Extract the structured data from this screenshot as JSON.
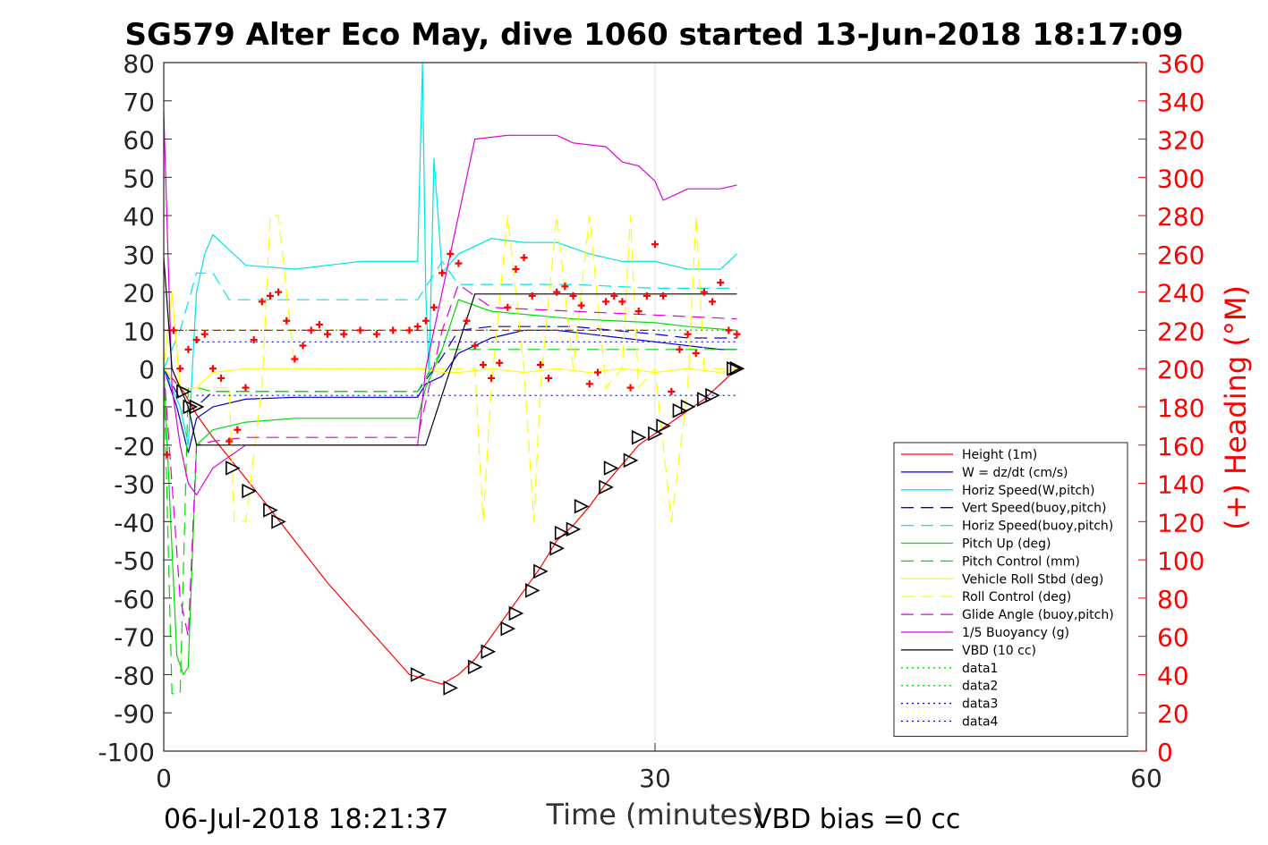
{
  "chart_data": {
    "type": "line",
    "title": "SG579 Alter Eco May, dive 1060 started 13-Jun-2018 18:17:09",
    "xlabel": "Time (minutes)",
    "ylabel_right": "(+) Heading (°M)",
    "xlim": [
      0,
      60
    ],
    "ylim_left": [
      -100,
      80
    ],
    "ylim_right": [
      0,
      360
    ],
    "xticks": [
      "0",
      "30",
      "60"
    ],
    "yticks_left": [
      "80",
      "70",
      "60",
      "50",
      "40",
      "30",
      "20",
      "10",
      "0",
      "-10",
      "-20",
      "-30",
      "-40",
      "-50",
      "-60",
      "-70",
      "-80",
      "-90",
      "-100"
    ],
    "yticks_right": [
      "360",
      "340",
      "320",
      "300",
      "280",
      "260",
      "240",
      "220",
      "200",
      "180",
      "160",
      "140",
      "120",
      "100",
      "80",
      "60",
      "40",
      "20",
      "0"
    ],
    "grid_x": [
      30
    ],
    "legend_position": "lower-right",
    "legend": [
      {
        "label": "Height (1m)",
        "color": "#ff0000",
        "dash": "solid"
      },
      {
        "label": "W = dz/dt (cm/s)",
        "color": "#0000cc",
        "dash": "solid"
      },
      {
        "label": "Horiz Speed(W,pitch)",
        "color": "#00e5e5",
        "dash": "solid"
      },
      {
        "label": "Vert Speed(buoy,pitch)",
        "color": "#0000cc",
        "dash": "long"
      },
      {
        "label": "Horiz Speed(buoy,pitch)",
        "color": "#00e5e5",
        "dash": "long"
      },
      {
        "label": "Pitch Up (deg)",
        "color": "#00dd00",
        "dash": "solid"
      },
      {
        "label": "Pitch Control (mm)",
        "color": "#00dd00",
        "dash": "long"
      },
      {
        "label": "Vehicle Roll Stbd (deg)",
        "color": "#ffff00",
        "dash": "solid"
      },
      {
        "label": "Roll Control (deg)",
        "color": "#ffff00",
        "dash": "long"
      },
      {
        "label": "Glide Angle (buoy,pitch)",
        "color": "#dd00dd",
        "dash": "long"
      },
      {
        "label": "1/5 Buoyancy (g)",
        "color": "#dd00dd",
        "dash": "solid"
      },
      {
        "label": "VBD (10 cc)",
        "color": "#000000",
        "dash": "solid"
      },
      {
        "label": "data1",
        "color": "#00dd00",
        "dash": "dot"
      },
      {
        "label": "data2",
        "color": "#00dd00",
        "dash": "dot"
      },
      {
        "label": "data3",
        "color": "#0000cc",
        "dash": "dot"
      },
      {
        "label": "data4",
        "color": "#0000cc",
        "dash": "dot"
      }
    ],
    "series": [
      {
        "name": "Height (1m)",
        "color": "#ff0000",
        "dash": "solid",
        "x": [
          0,
          1.2,
          2,
          3,
          4.5,
          6,
          10,
          15,
          17,
          18,
          19,
          20,
          21,
          22,
          23,
          24,
          25,
          26,
          27,
          28,
          29,
          30,
          31,
          32,
          33,
          34,
          35
        ],
        "y": [
          0,
          -6,
          -12,
          -18,
          -26,
          -34,
          -56,
          -80,
          -82.5,
          -80,
          -76,
          -70,
          -64,
          -58,
          -52,
          -45,
          -41,
          -36,
          -30,
          -25,
          -20,
          -17,
          -14,
          -11,
          -8,
          -4,
          0
        ]
      },
      {
        "name": "W = dz/dt (cm/s)",
        "color": "#0000cc",
        "dash": "solid",
        "x": [
          0,
          0.8,
          1.5,
          2,
          3,
          5,
          8,
          12,
          15.5,
          16,
          17,
          18,
          20,
          22,
          24,
          26,
          28,
          30,
          32,
          34,
          35
        ],
        "y": [
          0,
          -10,
          -22,
          -13,
          -10,
          -8,
          -7.5,
          -7.5,
          -7.5,
          -4,
          -2,
          4,
          8,
          10,
          10,
          9,
          8,
          7,
          6,
          5,
          5
        ]
      },
      {
        "name": "Horiz Speed(W,pitch)",
        "color": "#00e5e5",
        "dash": "solid",
        "x": [
          0,
          1,
          1.5,
          2,
          2.5,
          3,
          5,
          8,
          12,
          15.5,
          15.8,
          16,
          16.2,
          16.5,
          17,
          18,
          20,
          22,
          24,
          26,
          28,
          30,
          32,
          34,
          35
        ],
        "y": [
          0,
          -10,
          -20,
          20,
          30,
          35,
          27,
          26,
          28,
          28,
          80,
          20,
          -2,
          55,
          25,
          30,
          34,
          33,
          33,
          30,
          28,
          28,
          26,
          26,
          30
        ]
      },
      {
        "name": "Vert Speed(buoy,pitch)",
        "color": "#0000cc",
        "dash": "long",
        "x": [
          0,
          1,
          2,
          3,
          15.5,
          17,
          18,
          20,
          25,
          30,
          32,
          35
        ],
        "y": [
          0,
          -8,
          -10,
          -6,
          -6,
          3,
          10,
          11,
          11,
          9,
          8,
          8
        ]
      },
      {
        "name": "Horiz Speed(buoy,pitch)",
        "color": "#00e5e5",
        "dash": "long",
        "x": [
          0,
          1,
          2,
          3,
          4,
          15.5,
          17,
          18,
          20,
          25,
          30,
          32,
          35
        ],
        "y": [
          0,
          10,
          25,
          25,
          18,
          18,
          28,
          22,
          22,
          22,
          21,
          21,
          21
        ]
      },
      {
        "name": "Pitch Up (deg)",
        "color": "#00dd00",
        "dash": "solid",
        "x": [
          0,
          0.8,
          1.2,
          1.5,
          2,
          3,
          5,
          8,
          12,
          15.5,
          16,
          17,
          18,
          20,
          25,
          30,
          32,
          35
        ],
        "y": [
          0,
          -75,
          -80,
          -78,
          -20,
          -16,
          -14,
          -13,
          -13,
          -13,
          -5,
          5,
          18,
          15,
          13,
          12,
          11,
          10
        ]
      },
      {
        "name": "Pitch Control (mm)",
        "color": "#00dd00",
        "dash": "long",
        "x": [
          0,
          0.5,
          1,
          1.5,
          2,
          3,
          15.5,
          17,
          18,
          35
        ],
        "y": [
          0,
          -85,
          -85,
          -5,
          -5,
          -6,
          -6,
          5,
          5,
          5
        ]
      },
      {
        "name": "Vehicle Roll Stbd (deg)",
        "color": "#ffff00",
        "dash": "solid",
        "x": [
          0,
          0.5,
          1,
          2,
          3,
          5,
          10,
          15.5,
          17,
          18,
          20,
          22,
          24,
          26,
          28,
          30,
          32,
          34,
          35
        ],
        "y": [
          0,
          20,
          -5,
          -5,
          -1,
          0,
          0,
          0,
          -1,
          -1,
          0,
          -1,
          0,
          -1,
          0,
          -1,
          0,
          -1,
          0
        ]
      },
      {
        "name": "Roll Control (deg)",
        "color": "#ffff00",
        "dash": "long",
        "x": [
          0,
          1,
          2,
          3,
          4,
          4.3,
          5,
          6,
          6.5,
          7,
          8,
          15.5,
          19,
          19.5,
          20,
          21,
          22,
          22.6,
          23,
          24,
          25,
          26,
          27,
          28,
          28.5,
          29,
          30,
          31,
          32,
          32.5,
          33,
          34,
          35
        ],
        "y": [
          0,
          -5,
          -5,
          -5,
          -5,
          -40,
          -40,
          -5,
          40,
          40,
          0,
          0,
          0,
          -40,
          -5,
          40,
          0,
          -40,
          -5,
          40,
          0,
          40,
          -5,
          0,
          40,
          -5,
          0,
          -40,
          -5,
          40,
          0,
          0,
          0
        ]
      },
      {
        "name": "Glide Angle (buoy,pitch)",
        "color": "#dd00dd",
        "dash": "long",
        "x": [
          0,
          1,
          1.5,
          2,
          3,
          5,
          10,
          15.5,
          17,
          18,
          20,
          25,
          30,
          35
        ],
        "y": [
          0,
          -60,
          -70,
          -20,
          -19,
          -18,
          -18,
          -18,
          10,
          22,
          16,
          15,
          14,
          13
        ]
      },
      {
        "name": "1/5 Buoyancy (g)",
        "color": "#dd00dd",
        "dash": "solid",
        "x": [
          0,
          0.5,
          1,
          1.5,
          2,
          3,
          5,
          10,
          15.5,
          16,
          17,
          18,
          19,
          21,
          24,
          25,
          27,
          28,
          29,
          30,
          30.5,
          32,
          34,
          35
        ],
        "y": [
          67,
          -5,
          -20,
          -30,
          -33,
          -26,
          -20,
          -20,
          -20,
          0,
          20,
          40,
          60,
          61,
          61,
          59,
          58,
          54,
          53,
          49,
          44,
          47,
          47,
          48
        ]
      },
      {
        "name": "VBD (10 cc)",
        "color": "#000000",
        "dash": "solid",
        "x": [
          0,
          0.5,
          1.5,
          2,
          3,
          15.5,
          16,
          19,
          30,
          35
        ],
        "y": [
          29,
          0,
          -10,
          -20,
          -20,
          -20,
          -20,
          19.5,
          19.5,
          19.5
        ]
      },
      {
        "name": "data1",
        "color": "#00dd00",
        "dash": "dot",
        "x": [
          0,
          35
        ],
        "y": [
          10,
          10
        ]
      },
      {
        "name": "data2",
        "color": "#00dd00",
        "dash": "dot",
        "x": [
          0,
          35
        ],
        "y": [
          10,
          10
        ]
      },
      {
        "name": "data3",
        "color": "#0000cc",
        "dash": "dot",
        "x": [
          2,
          35
        ],
        "y": [
          7,
          7
        ]
      },
      {
        "name": "data4",
        "color": "#0000cc",
        "dash": "dot",
        "x": [
          2,
          35
        ],
        "y": [
          -7,
          -7
        ]
      },
      {
        "name": "",
        "color": "#ff0000",
        "dash": "dash",
        "x": [
          0,
          30
        ],
        "y": [
          10,
          10
        ]
      }
    ],
    "heading_points": {
      "axis": "right",
      "color": "#ff0000",
      "marker": "+",
      "x": [
        0.2,
        0.6,
        1,
        1.5,
        2,
        2.5,
        3,
        3.5,
        4,
        4.5,
        5,
        5.5,
        6,
        6.5,
        7,
        7.5,
        8,
        8.5,
        9,
        9.5,
        10,
        11,
        12,
        13,
        14,
        15,
        15.5,
        16,
        16.5,
        17,
        17.5,
        18,
        18.5,
        19,
        19.5,
        20,
        20.5,
        21,
        21.5,
        22,
        22.5,
        23,
        23.5,
        24,
        24.5,
        25,
        25.5,
        26,
        26.5,
        27,
        27.5,
        28,
        28.5,
        29,
        29.5,
        30,
        30.5,
        31,
        31.5,
        32,
        32.5,
        33,
        33.5,
        34,
        34.5,
        35
      ],
      "y": [
        155,
        220,
        200,
        210,
        215,
        218,
        200,
        195,
        162,
        168,
        190,
        215,
        235,
        238,
        240,
        225,
        205,
        212,
        220,
        223,
        218,
        218,
        220,
        218,
        220,
        220,
        222,
        225,
        232,
        250,
        260,
        255,
        225,
        212,
        202,
        195,
        203,
        232,
        252,
        258,
        238,
        202,
        195,
        240,
        243,
        238,
        233,
        192,
        198,
        235,
        238,
        235,
        190,
        230,
        238,
        265,
        238,
        188,
        210,
        218,
        208,
        240,
        235,
        245,
        220,
        218
      ]
    },
    "marker_points": {
      "color": "#000000",
      "marker": "triangle",
      "x": [
        1.2,
        1.6,
        2,
        4.2,
        5.2,
        6.5,
        7,
        15.5,
        17.5,
        19,
        19.8,
        21,
        21.5,
        22.5,
        23,
        24,
        24.3,
        25,
        25.5,
        27,
        27.3,
        28.5,
        29,
        30,
        30.5,
        31.5,
        32,
        33,
        33.5,
        34.8,
        35
      ],
      "y": [
        -6,
        -10,
        -10,
        -26,
        -32,
        -37,
        -40,
        -80,
        -83.5,
        -78,
        -74,
        -68,
        -64,
        -58,
        -53,
        -47,
        -43,
        -42,
        -36,
        -31,
        -26,
        -24,
        -18,
        -17,
        -15,
        -11,
        -10,
        -8,
        -7,
        0,
        0
      ]
    }
  },
  "footer": {
    "timestamp": "06-Jul-2018 18:21:37",
    "vbd_bias": "VBD bias =0 cc"
  }
}
